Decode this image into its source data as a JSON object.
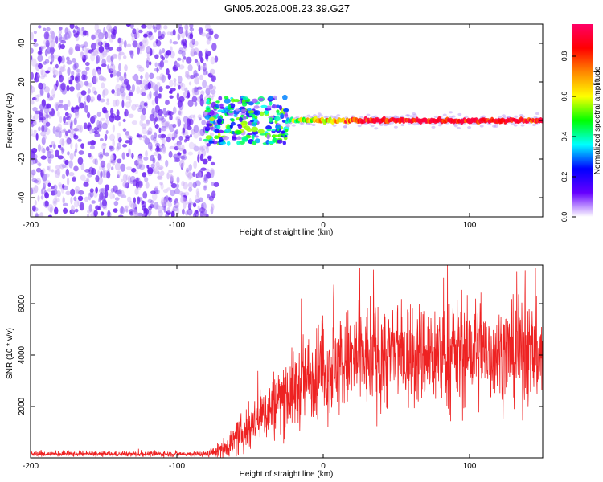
{
  "title": "GN05.2026.008.23.39.G27",
  "chart_data": [
    {
      "type": "heatmap",
      "xlabel": "Height of straight line (km)",
      "ylabel": "Frequency (Hz)",
      "xlim": [
        -200,
        150
      ],
      "ylim": [
        -50,
        50
      ],
      "xticks": [
        -200,
        -100,
        0,
        100
      ],
      "yticks": [
        -40,
        -20,
        0,
        20,
        40
      ],
      "features": {
        "noise_region_x": [
          -200,
          -78
        ],
        "signal_onset_x": -78,
        "turbulent_region_x": [
          -80,
          -25
        ],
        "turbulent_freq_range": [
          -12,
          12
        ],
        "stable_line_x": [
          -25,
          150
        ],
        "stable_line_freq": 0,
        "stable_line_peak_amplitude": 0.95
      },
      "colorbar": {
        "label": "Normalized spectral amplitude",
        "range": [
          0,
          0.96
        ],
        "ticks": [
          "0.0",
          "0.2",
          "0.4",
          "0.6",
          "0.8"
        ],
        "colors": [
          "#ffffff",
          "#6600ff",
          "#0000ff",
          "#00ffff",
          "#00ff00",
          "#ffff00",
          "#ff8800",
          "#ff0000",
          "#ff0066"
        ]
      }
    },
    {
      "type": "line",
      "xlabel": "Height of straight line (km)",
      "ylabel": "SNR (10 * v/v)",
      "xlim": [
        -200,
        150
      ],
      "ylim": [
        0,
        7500
      ],
      "xticks": [
        -200,
        -100,
        0,
        100
      ],
      "yticks": [
        2000,
        4000,
        6000
      ],
      "color": "#ee2222",
      "envelope": {
        "x": [
          -200,
          -80,
          -70,
          -60,
          -50,
          -40,
          -30,
          -20,
          -10,
          0,
          20,
          40,
          60,
          80,
          100,
          120,
          140,
          150
        ],
        "mean": [
          150,
          150,
          300,
          700,
          1200,
          1700,
          2300,
          2600,
          3100,
          3400,
          3800,
          3900,
          4000,
          4000,
          4000,
          4100,
          4000,
          4000
        ],
        "spread": [
          80,
          80,
          250,
          500,
          700,
          900,
          1100,
          1200,
          1300,
          1500,
          1600,
          1600,
          1600,
          1600,
          1600,
          1500,
          1500,
          1400
        ]
      },
      "peaks": [
        {
          "x": -15,
          "y": 6200
        },
        {
          "x": 25,
          "y": 7400
        },
        {
          "x": 85,
          "y": 7500
        },
        {
          "x": 138,
          "y": 7300
        },
        {
          "x": 145,
          "y": 7400
        }
      ]
    }
  ]
}
